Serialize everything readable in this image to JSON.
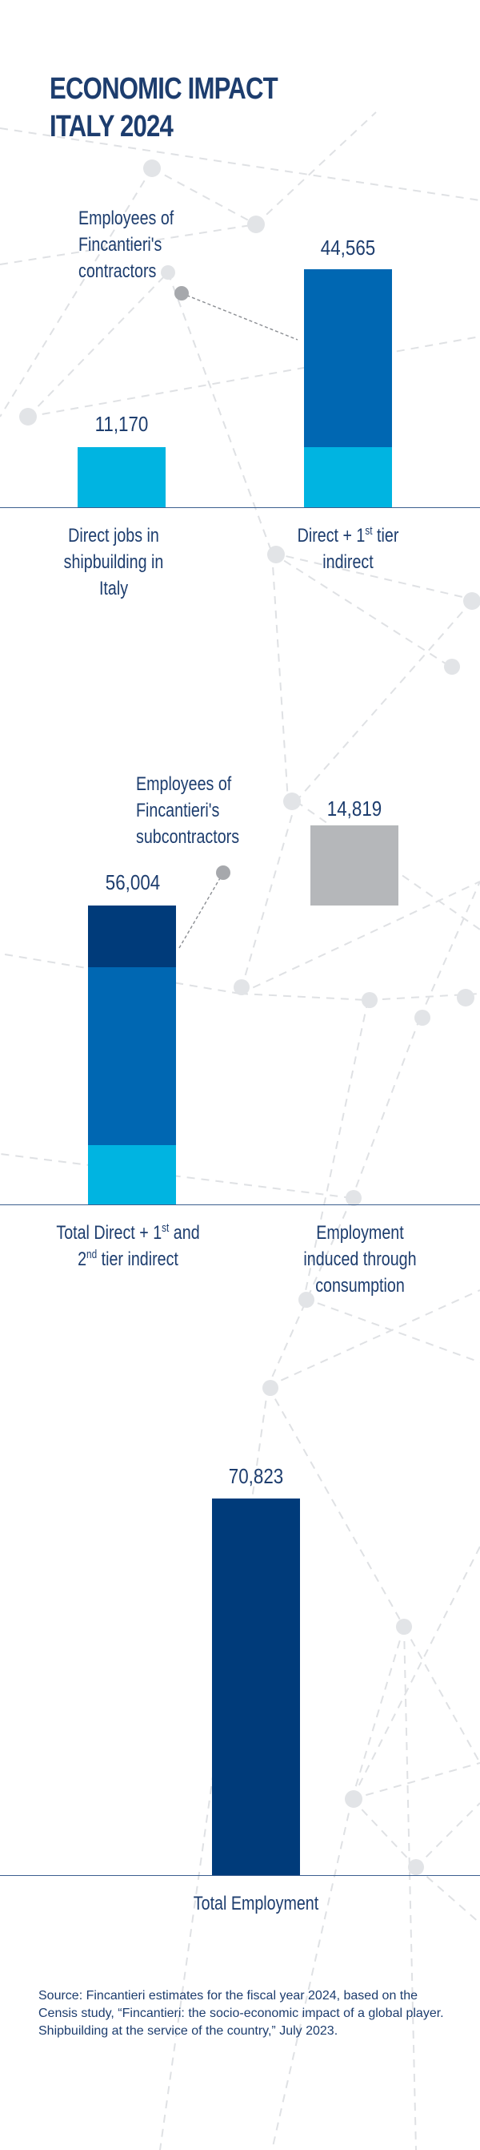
{
  "title_lines": [
    "ECONOMIC IMPACT",
    "ITALY 2024"
  ],
  "chart_data": [
    {
      "type": "bar",
      "stacked": true,
      "categories": [
        "Direct jobs in shipbuilding in Italy",
        "Direct + 1st tier indirect"
      ],
      "totals": [
        11170,
        44565
      ],
      "total_labels": [
        "11,170",
        "44,565"
      ],
      "segments": [
        {
          "category": 0,
          "part": "direct",
          "value": 11170,
          "color": "#00b4e1"
        },
        {
          "category": 1,
          "part": "direct",
          "value": 11170,
          "color": "#00b4e1"
        },
        {
          "category": 1,
          "part": "contractors",
          "value": 33395,
          "color": "#0067b2"
        }
      ],
      "annotation": "Employees of Fincantieri's contractors",
      "annotation_lines": [
        "Employees of",
        "Fincantieri's",
        "contractors"
      ],
      "xlabels": [
        [
          "Direct jobs in",
          "shipbuilding in",
          "Italy"
        ],
        [
          "Direct + 1",
          "st",
          " tier",
          "indirect"
        ]
      ]
    },
    {
      "type": "bar",
      "stacked": true,
      "categories": [
        "Total Direct + 1st and 2nd tier indirect",
        "Employment induced through consumption"
      ],
      "totals": [
        56004,
        14819
      ],
      "total_labels": [
        "56,004",
        "14,819"
      ],
      "segments": [
        {
          "category": 0,
          "part": "direct",
          "value": 11170,
          "color": "#00b4e1"
        },
        {
          "category": 0,
          "part": "contractors",
          "value": 33395,
          "color": "#0067b2"
        },
        {
          "category": 0,
          "part": "subcontractors",
          "value": 11439,
          "color": "#003b7a"
        },
        {
          "category": 1,
          "part": "induced",
          "value": 14819,
          "color": "#b5b7ba",
          "floating_from": 56004
        }
      ],
      "annotation": "Employees of Fincantieri's subcontractors",
      "annotation_lines": [
        "Employees of",
        "Fincantieri's",
        "subcontractors"
      ],
      "xlabels": [
        [
          "Total Direct + 1",
          "st",
          " and",
          "2",
          "nd",
          " tier indirect"
        ],
        [
          "Employment",
          "induced through",
          "consumption"
        ]
      ]
    },
    {
      "type": "bar",
      "categories": [
        "Total Employment"
      ],
      "values": [
        70823
      ],
      "total_labels": [
        "70,823"
      ],
      "color": "#003b7a",
      "xlabels": [
        [
          "Total Employment"
        ]
      ]
    }
  ],
  "source_text": "Source: Fincantieri estimates for the fiscal year 2024, based on the Censis study, “Fincantieri: the socio-economic impact of a global player. Shipbuilding at the service of the country,” July 2023.",
  "colors": {
    "direct": "#00b4e1",
    "contractors": "#0067b2",
    "subcontractors": "#003b7a",
    "induced": "#b5b7ba",
    "text": "#1d3d6e"
  }
}
